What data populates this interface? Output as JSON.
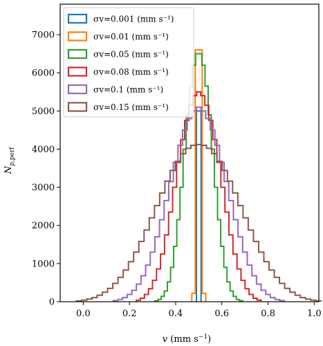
{
  "chart_data": {
    "type": "histogram",
    "xlabel": "v  (mm s⁻¹)",
    "ylabel": "N p,perf",
    "xlim": [
      -0.1,
      1.02
    ],
    "ylim": [
      0,
      7800
    ],
    "xticks": [
      0.0,
      0.2,
      0.4,
      0.6,
      0.8,
      1.0
    ],
    "xtick_labels": [
      "0.0",
      "0.2",
      "0.4",
      "0.6",
      "0.8",
      "1.0"
    ],
    "yticks": [
      0,
      1000,
      2000,
      3000,
      4000,
      5000,
      6000,
      7000
    ],
    "ytick_labels": [
      "0",
      "1000",
      "2000",
      "3000",
      "4000",
      "5000",
      "6000",
      "7000"
    ],
    "grid": false,
    "legend_position": "top-left",
    "bin_width": 0.02,
    "center": 0.5,
    "series": [
      {
        "name": "σv=0.001 (mm s⁻¹)",
        "sigma": 0.001,
        "color": "#1f77b4",
        "range": [
          0.49,
          0.51
        ],
        "counts": [
          5000,
          5000
        ]
      },
      {
        "name": "σv=0.01 (mm s⁻¹)",
        "sigma": 0.01,
        "color": "#ff7f0e",
        "range": [
          0.47,
          0.53
        ],
        "counts": [
          220,
          6600,
          6600,
          220
        ]
      },
      {
        "name": "σv=0.05 (mm s⁻¹)",
        "sigma": 0.05,
        "color": "#2ca02c",
        "range": [
          0.31,
          0.69
        ],
        "counts": [
          25,
          60,
          140,
          280,
          520,
          900,
          1450,
          2150,
          3000,
          4000,
          4900,
          5650,
          6200,
          6500,
          6500,
          6200,
          5650,
          4900,
          4000,
          3000,
          2150,
          1450,
          900,
          520,
          280,
          140,
          60,
          25
        ]
      },
      {
        "name": "σv=0.08 (mm s⁻¹)",
        "sigma": 0.08,
        "color": "#d62728",
        "range": [
          0.23,
          0.77
        ],
        "counts": [
          40,
          90,
          190,
          340,
          560,
          860,
          1250,
          1750,
          2350,
          3000,
          3650,
          4250,
          4750,
          5150,
          5400,
          5500,
          5400,
          5150,
          4750,
          4250,
          3650,
          3000,
          2350,
          1750,
          1250,
          860,
          560,
          340,
          190,
          90,
          40
        ]
      },
      {
        "name": "σv=0.1 (mm s⁻¹)",
        "sigma": 0.1,
        "color": "#9467bd",
        "range": [
          0.13,
          0.87
        ],
        "counts": [
          30,
          60,
          110,
          190,
          300,
          460,
          680,
          960,
          1300,
          1700,
          2150,
          2650,
          3150,
          3650,
          4100,
          4500,
          4800,
          5000,
          5100,
          5000,
          4800,
          4500,
          4100,
          3650,
          3150,
          2650,
          2150,
          1700,
          1300,
          960,
          680,
          460,
          300,
          190,
          110,
          60,
          30
        ]
      },
      {
        "name": "σv=0.15 (mm s⁻¹)",
        "sigma": 0.15,
        "color": "#8c564b",
        "range": [
          -0.03,
          1.03
        ],
        "counts": [
          20,
          40,
          70,
          110,
          170,
          250,
          350,
          480,
          640,
          830,
          1050,
          1300,
          1580,
          1880,
          2200,
          2520,
          2850,
          3160,
          3440,
          3680,
          3880,
          4020,
          4100,
          4120,
          4100,
          4020,
          3880,
          3680,
          3440,
          3160,
          2850,
          2520,
          2200,
          1880,
          1580,
          1300,
          1050,
          830,
          640,
          480,
          350,
          250,
          170,
          110,
          70,
          40,
          20
        ]
      }
    ]
  }
}
